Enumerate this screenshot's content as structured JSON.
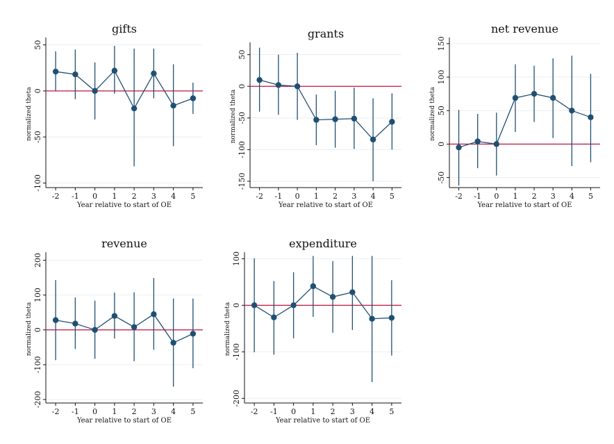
{
  "chart_data": [
    {
      "type": "line",
      "title": "gifts",
      "xlabel": "Year relative to start of OE",
      "ylabel": "normalized theta",
      "x": [
        -2,
        -1,
        0,
        1,
        2,
        3,
        4,
        5
      ],
      "y": [
        21,
        18,
        0,
        22,
        -19,
        19,
        -16,
        -8
      ],
      "ci_low": [
        0,
        -9,
        -31,
        -3,
        -82,
        -8,
        -60,
        -25
      ],
      "ci_high": [
        43,
        45,
        31,
        49,
        46,
        46,
        29,
        9
      ],
      "ylim": [
        -105,
        55
      ],
      "yticks": [
        50,
        0,
        -50,
        -100
      ],
      "grid": true,
      "reference_line": 0
    },
    {
      "type": "line",
      "title": "grants",
      "xlabel": "Year relative to start of OE",
      "ylabel": "normalized theta",
      "x": [
        -2,
        -1,
        0,
        1,
        2,
        3,
        4,
        5
      ],
      "y": [
        10,
        2,
        0,
        -53,
        -52,
        -51,
        -84,
        -56
      ],
      "ci_low": [
        -40,
        -45,
        -53,
        -93,
        -97,
        -99,
        -150,
        -100
      ],
      "ci_high": [
        61,
        50,
        53,
        -13,
        -7,
        -2,
        -19,
        -11
      ],
      "ylim": [
        -160,
        65
      ],
      "yticks": [
        50,
        0,
        -50,
        -100,
        -150
      ],
      "grid": true,
      "reference_line": 0
    },
    {
      "type": "line",
      "title": "net revenue",
      "xlabel": "Year relative to start of OE",
      "ylabel": "normalized theta",
      "x": [
        -2,
        -1,
        0,
        1,
        2,
        3,
        4,
        5
      ],
      "y": [
        -5,
        4,
        0,
        69,
        75,
        69,
        50,
        40
      ],
      "ci_low": [
        -62,
        -36,
        -47,
        18,
        33,
        9,
        -33,
        -27
      ],
      "ci_high": [
        51,
        45,
        47,
        119,
        117,
        128,
        132,
        105
      ],
      "ylim": [
        -65,
        155
      ],
      "yticks": [
        150,
        100,
        50,
        0,
        -50
      ],
      "grid": true,
      "reference_line": 0
    },
    {
      "type": "line",
      "title": "revenue",
      "xlabel": "Year relative to start of OE",
      "ylabel": "normalized theta",
      "x": [
        -2,
        -1,
        0,
        1,
        2,
        3,
        4,
        5
      ],
      "y": [
        28,
        18,
        0,
        40,
        8,
        45,
        -37,
        -11
      ],
      "ci_low": [
        -87,
        -55,
        -83,
        -25,
        -90,
        -57,
        -163,
        -110
      ],
      "ci_high": [
        143,
        93,
        84,
        107,
        108,
        149,
        90,
        90
      ],
      "ylim": [
        -210,
        215
      ],
      "yticks": [
        200,
        100,
        0,
        -100,
        -200
      ],
      "grid": true,
      "reference_line": 0
    },
    {
      "type": "line",
      "title": "expenditure",
      "xlabel": "Year relative to start of OE",
      "ylabel": "normalized theta",
      "x": [
        -2,
        -1,
        0,
        1,
        2,
        3,
        4,
        5
      ],
      "y": [
        0,
        -26,
        0,
        41,
        18,
        28,
        -29,
        -27
      ],
      "ci_low": [
        -101,
        -106,
        -71,
        -25,
        -59,
        -53,
        -165,
        -108
      ],
      "ci_high": [
        101,
        52,
        71,
        106,
        95,
        106,
        106,
        54
      ],
      "ylim": [
        -210,
        108
      ],
      "yticks": [
        100,
        0,
        -100,
        -200
      ],
      "grid": true,
      "reference_line": 0
    }
  ],
  "colors": {
    "series": "#1f4f73",
    "reference_line": "#c0143c",
    "grid": "#eaeef2",
    "axis": "#111111"
  }
}
